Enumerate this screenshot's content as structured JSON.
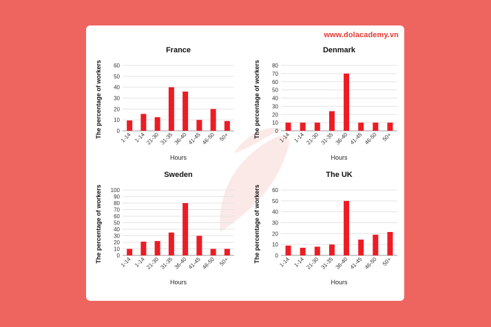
{
  "brand": {
    "text": "www.dolacademy.vn"
  },
  "colors": {
    "background": "#ee6560",
    "bar": "#ed1c24",
    "brand": "#e23b35"
  },
  "chart_data": [
    {
      "type": "bar",
      "title": "France",
      "xlabel": "Hours",
      "ylabel": "The percentage of workers",
      "categories": [
        "1-14",
        "1-14",
        "21-30",
        "31-35",
        "36-40",
        "41-45",
        "46-50",
        "50+"
      ],
      "values": [
        9.5,
        15.5,
        12.5,
        40,
        36,
        10,
        20,
        9
      ],
      "yticks": [
        0,
        10,
        20,
        30,
        40,
        50,
        60
      ],
      "ylim": [
        0,
        60
      ],
      "grid": true
    },
    {
      "type": "bar",
      "title": "Denmark",
      "xlabel": "Hours",
      "ylabel": "The percentage of workers",
      "categories": [
        "1-14",
        "1-14",
        "21-30",
        "31-35",
        "36-40",
        "41-45",
        "46-50",
        "50+"
      ],
      "values": [
        10,
        10,
        10,
        24,
        70,
        10,
        10,
        10
      ],
      "yticks": [
        0,
        10,
        20,
        30,
        40,
        50,
        60,
        70,
        80
      ],
      "ylim": [
        0,
        80
      ],
      "grid": true
    },
    {
      "type": "bar",
      "title": "Sweden",
      "xlabel": "Hours",
      "ylabel": "The percentage of workers",
      "categories": [
        "1-14",
        "1-14",
        "21-30",
        "31-35",
        "36-40",
        "41-45",
        "46-50",
        "50+"
      ],
      "values": [
        10,
        21,
        22,
        35,
        80,
        30,
        10,
        10
      ],
      "yticks": [
        0,
        10,
        20,
        30,
        40,
        50,
        60,
        70,
        80,
        90,
        100
      ],
      "ylim": [
        0,
        100
      ],
      "grid": true
    },
    {
      "type": "bar",
      "title": "The UK",
      "xlabel": "Hours",
      "ylabel": "The percentage of workers",
      "categories": [
        "1-14",
        "1-14",
        "21-30",
        "31-35",
        "36-40",
        "41-45",
        "46-50",
        "50+"
      ],
      "values": [
        9,
        7,
        8,
        10,
        50,
        14.5,
        19,
        21.5
      ],
      "yticks": [
        0,
        10,
        20,
        30,
        40,
        50,
        60
      ],
      "ylim": [
        0,
        60
      ],
      "grid": true
    }
  ]
}
